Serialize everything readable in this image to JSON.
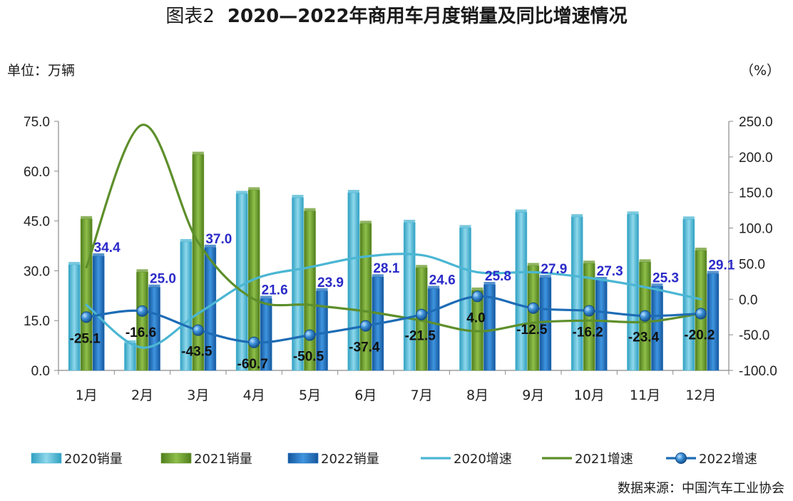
{
  "header": {
    "prefix": "图表2",
    "title": "2020—2022年商用车月度销量及同比增速情况",
    "unit_left": "单位：万辆",
    "unit_right": "（%）"
  },
  "footer": {
    "source": "数据来源：中国汽车工业协会"
  },
  "chart_data": {
    "type": "bar",
    "categories": [
      "1月",
      "2月",
      "3月",
      "4月",
      "5月",
      "6月",
      "7月",
      "8月",
      "9月",
      "10月",
      "11月",
      "12月"
    ],
    "left_axis": {
      "ylim": [
        0,
        75
      ],
      "ticks": [
        "0.0",
        "15.0",
        "30.0",
        "45.0",
        "60.0",
        "75.0"
      ]
    },
    "right_axis": {
      "ylim": [
        -100,
        250
      ],
      "ticks": [
        "-100.0",
        "-50.0",
        "0.0",
        "50.0",
        "100.0",
        "150.0",
        "200.0",
        "250.0"
      ]
    },
    "bar_series": [
      {
        "name": "2020销量",
        "color": "#4bb6d3",
        "values": [
          31.8,
          8.2,
          38.7,
          53.2,
          52.0,
          53.5,
          44.5,
          42.9,
          47.6,
          46.2,
          47.0,
          45.5
        ]
      },
      {
        "name": "2021销量",
        "color": "#6a9a2c",
        "values": [
          45.6,
          29.6,
          65.0,
          54.3,
          48.0,
          44.2,
          30.9,
          24.1,
          31.5,
          32.2,
          32.6,
          36.1
        ]
      },
      {
        "name": "2022销量",
        "color": "#1f6fbe",
        "values": [
          34.4,
          25.0,
          37.0,
          21.6,
          23.9,
          28.1,
          24.6,
          25.8,
          27.9,
          27.3,
          25.3,
          29.1
        ]
      }
    ],
    "line_series": [
      {
        "name": "2020增速",
        "color": "#4bb6d3",
        "values": [
          -8.0,
          -68.0,
          -20.0,
          28.0,
          45.0,
          60.0,
          62.0,
          38.0,
          38.0,
          30.0,
          17.0,
          0.0
        ]
      },
      {
        "name": "2021增速",
        "color": "#5d8f2b",
        "values": [
          45.0,
          245.0,
          80.0,
          0.0,
          -8.0,
          -17.0,
          -30.0,
          -45.0,
          -33.0,
          -30.0,
          -32.0,
          -20.0
        ]
      },
      {
        "name": "2022增速",
        "color": "#1d6cb5",
        "values": [
          -25.1,
          -16.6,
          -43.5,
          -60.7,
          -50.5,
          -37.4,
          -21.5,
          4.0,
          -12.5,
          -16.2,
          -23.4,
          -20.2
        ]
      }
    ],
    "bar_labels": [
      "34.4",
      "25.0",
      "37.0",
      "21.6",
      "23.9",
      "28.1",
      "24.6",
      "25.8",
      "27.9",
      "27.3",
      "25.3",
      "29.1"
    ],
    "growth_labels": [
      "-25.1",
      "-16.6",
      "-43.5",
      "-60.7",
      "-50.5",
      "-37.4",
      "-21.5",
      "4.0",
      "-12.5",
      "-16.2",
      "-23.4",
      "-20.2"
    ],
    "legend": [
      "2020销量",
      "2021销量",
      "2022销量",
      "2020增速",
      "2021增速",
      "2022增速"
    ],
    "legend_position": "bottom",
    "grid": false
  }
}
